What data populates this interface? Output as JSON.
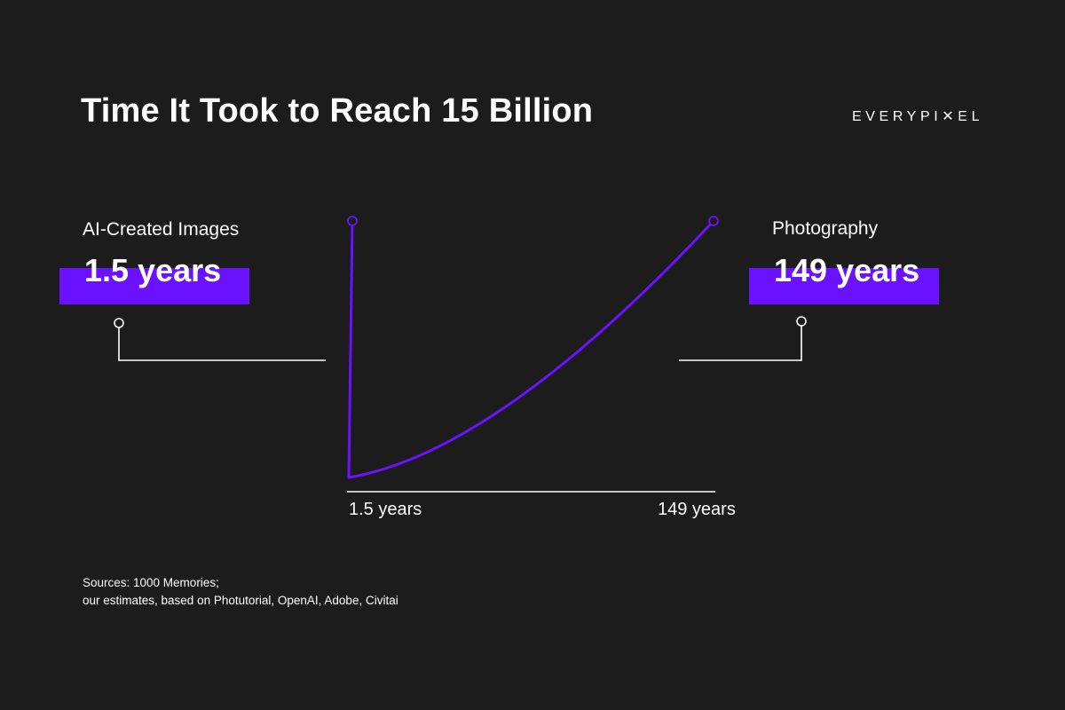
{
  "title": "Time It Took to Reach 15 Billion",
  "logo": {
    "before": "EVERYPI",
    "x": "✕",
    "after": "EL"
  },
  "left": {
    "label": "AI-Created Images",
    "value": "1.5 years"
  },
  "right": {
    "label": "Photography",
    "value": "149 years"
  },
  "colors": {
    "accent": "#6a12ff",
    "background": "#1c1c1c",
    "text": "#ffffff"
  },
  "sources": {
    "line1": "Sources: 1000 Memories;",
    "line2": "our estimates, based on Photutorial, OpenAI, Adobe, Civitai"
  },
  "chart_data": {
    "type": "line",
    "title": "Time It Took to Reach 15 Billion",
    "x_tick_labels": [
      "1.5 years",
      "149 years"
    ],
    "series": [
      {
        "name": "AI-Created Images",
        "x": [
          0,
          1.5
        ],
        "y": [
          0,
          15
        ],
        "unit": "billion images"
      },
      {
        "name": "Photography",
        "x": [
          0,
          149
        ],
        "y": [
          0,
          15
        ],
        "unit": "billion images"
      }
    ],
    "xlabel": "",
    "ylabel": "",
    "grid": false,
    "legend": "none"
  }
}
